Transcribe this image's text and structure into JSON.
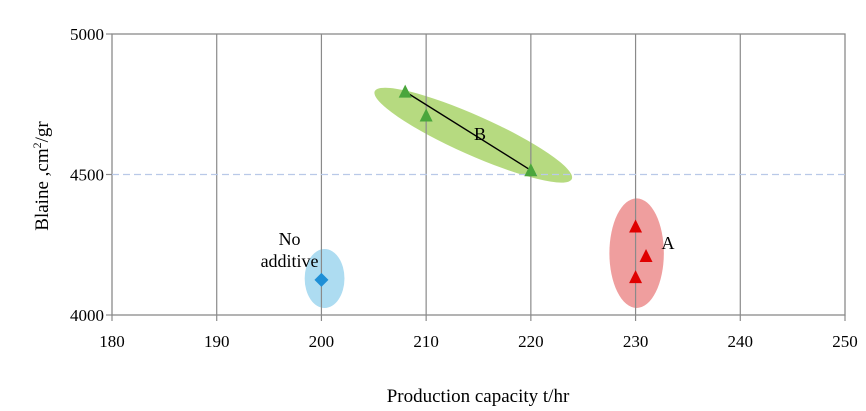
{
  "chart_data": {
    "type": "scatter",
    "title": "",
    "xlabel": "Production capacity t/hr",
    "ylabel_parts": [
      "Blaine ,cm",
      "2",
      "/gr"
    ],
    "xlim": [
      180,
      250
    ],
    "ylim": [
      4000,
      5000
    ],
    "x_ticks": [
      180,
      190,
      200,
      210,
      220,
      230,
      240,
      250
    ],
    "y_ticks": [
      4000,
      4500,
      5000
    ],
    "y_tick_labels": [
      "4000",
      "4500",
      "5000"
    ],
    "grid": {
      "vertical": true,
      "horizontal_dashed_at": 4500
    },
    "series": [
      {
        "color": "#1e8fd6",
        "marker": "diamond",
        "points": [
          [
            200,
            4125
          ]
        ]
      },
      {
        "color": "#4aa63c",
        "marker": "triangle",
        "points": [
          [
            208,
            4795
          ],
          [
            210,
            4710
          ],
          [
            220,
            4515
          ]
        ]
      },
      {
        "color": "#e00000",
        "marker": "triangle",
        "points": [
          [
            230,
            4315
          ],
          [
            231,
            4210
          ],
          [
            230,
            4135
          ]
        ]
      }
    ],
    "groups": [
      {
        "label": "No additive",
        "label_lines": [
          "No",
          "additive"
        ],
        "fill": "#9fd6ef",
        "cx": 200.3,
        "cy": 4130,
        "rx": 1.9,
        "ry": 105,
        "rotate": 0
      },
      {
        "label": "B",
        "fill": "#a9d46a",
        "cx": 214.5,
        "cy": 4640,
        "rx": 10.3,
        "ry": 70,
        "rotate": 24
      },
      {
        "label": "A",
        "fill": "#ec8d8d",
        "cx": 230.1,
        "cy": 4220,
        "rx": 2.6,
        "ry": 195,
        "rotate": 0
      }
    ],
    "trendline": {
      "group": "B",
      "from": [
        208,
        4795
      ],
      "to": [
        220,
        4515
      ]
    }
  }
}
